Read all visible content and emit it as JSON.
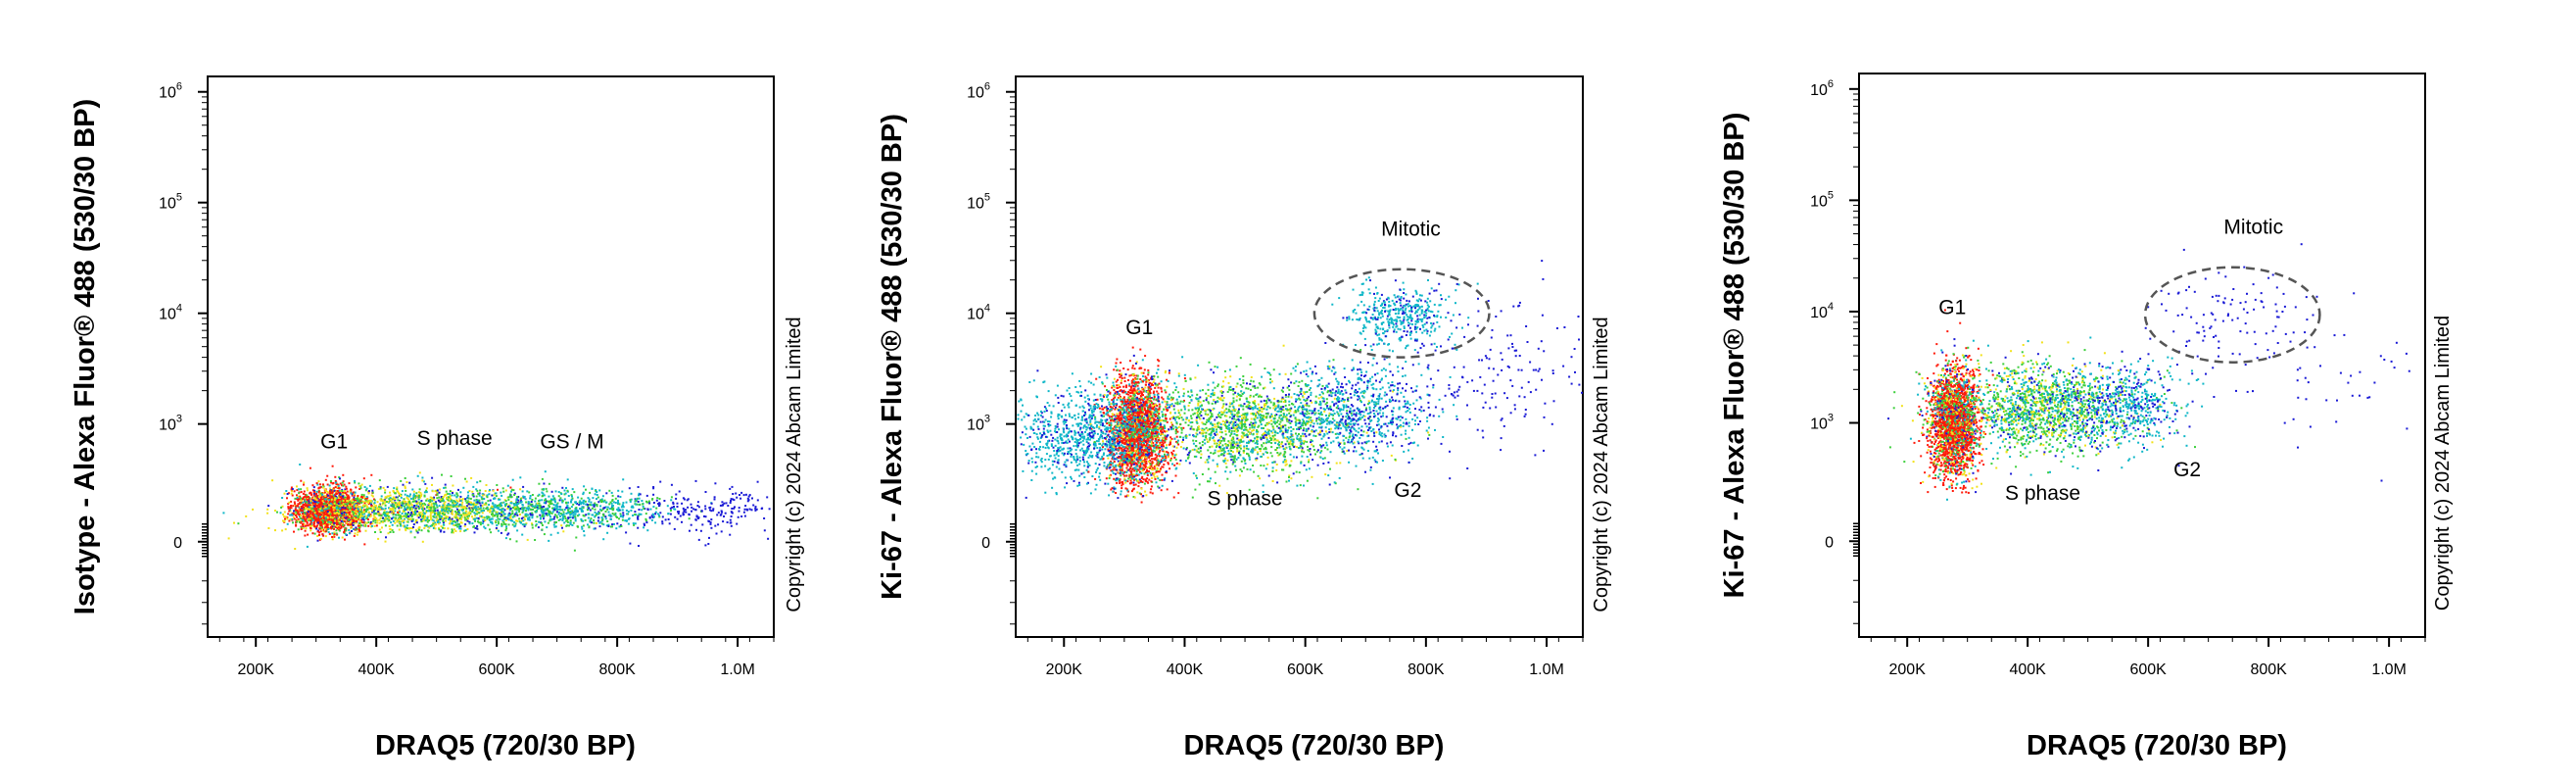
{
  "copyright_text": "Copyright (c) 2024 Abcam Limited",
  "colors": {
    "low": "#1a1ad6",
    "mid_low": "#0fb7c8",
    "mid": "#3ccf3c",
    "mid_high": "#f2e21a",
    "high": "#ff1a0a",
    "frame": "#000000",
    "gate": "#555555"
  },
  "chart_data": [
    {
      "type": "scatter",
      "title": "",
      "xlabel": "DRAQ5 (720/30 BP)",
      "ylabel": "Isotype - Alexa Fluor® 488 (530/30 BP)",
      "xlim": [
        120000,
        1060000
      ],
      "x_ticks": [
        {
          "value": 200000,
          "label": "200K"
        },
        {
          "value": 400000,
          "label": "400K"
        },
        {
          "value": 600000,
          "label": "600K"
        },
        {
          "value": 800000,
          "label": "800K"
        },
        {
          "value": 1000000,
          "label": "1.0M"
        }
      ],
      "y_scale": "biexponential",
      "y_ticks": [
        {
          "value": 0,
          "base": "0",
          "exp": ""
        },
        {
          "value": 1000,
          "base": "10",
          "exp": "3"
        },
        {
          "value": 10000,
          "base": "10",
          "exp": "4"
        },
        {
          "value": 100000,
          "base": "10",
          "exp": "5"
        },
        {
          "value": 1000000,
          "base": "10",
          "exp": "6"
        }
      ],
      "annotations": [
        {
          "text": "G1",
          "x": 330000,
          "y": 600
        },
        {
          "text": "S phase",
          "x": 530000,
          "y": 650
        },
        {
          "text": "GS / M",
          "x": 725000,
          "y": 600
        }
      ],
      "gates": [],
      "populations": [
        {
          "name": "G1",
          "x_center": 320000,
          "y_center": 15,
          "density": "high"
        },
        {
          "name": "S phase",
          "x_center": 500000,
          "y_center": 15,
          "density": "medium"
        },
        {
          "name": "GS / M",
          "x_center": 700000,
          "y_center": 15,
          "density": "low"
        }
      ]
    },
    {
      "type": "scatter",
      "title": "",
      "xlabel": "DRAQ5 (720/30 BP)",
      "ylabel": "Ki-67 - Alexa Fluor® 488 (530/30 BP)",
      "xlim": [
        120000,
        1060000
      ],
      "x_ticks": [
        {
          "value": 200000,
          "label": "200K"
        },
        {
          "value": 400000,
          "label": "400K"
        },
        {
          "value": 600000,
          "label": "600K"
        },
        {
          "value": 800000,
          "label": "800K"
        },
        {
          "value": 1000000,
          "label": "1.0M"
        }
      ],
      "y_scale": "biexponential",
      "y_ticks": [
        {
          "value": 0,
          "base": "0",
          "exp": ""
        },
        {
          "value": 1000,
          "base": "10",
          "exp": "3"
        },
        {
          "value": 10000,
          "base": "10",
          "exp": "4"
        },
        {
          "value": 100000,
          "base": "10",
          "exp": "5"
        },
        {
          "value": 1000000,
          "base": "10",
          "exp": "6"
        }
      ],
      "annotations": [
        {
          "text": "Mitotic",
          "x": 775000,
          "y": 50000
        },
        {
          "text": "G1",
          "x": 325000,
          "y": 6500
        },
        {
          "text": "G2",
          "x": 770000,
          "y": 220
        },
        {
          "text": "S phase",
          "x": 500000,
          "y": 20
        }
      ],
      "gates": [
        {
          "name": "Mitotic",
          "x_center": 760000,
          "y_center": 10000,
          "x_radius": 145000,
          "y_range": [
            4000,
            25000
          ]
        }
      ],
      "populations": [
        {
          "name": "G1",
          "x_center": 315000,
          "y_center": 900,
          "density": "high"
        },
        {
          "name": "S phase",
          "x_center": 520000,
          "y_center": 1000,
          "density": "medium"
        },
        {
          "name": "G2",
          "x_center": 720000,
          "y_center": 1300,
          "density": "low"
        },
        {
          "name": "Mitotic",
          "x_center": 760000,
          "y_center": 10000,
          "density": "low"
        }
      ]
    },
    {
      "type": "scatter",
      "title": "",
      "xlabel": "DRAQ5 (720/30 BP)",
      "ylabel": "Ki-67 - Alexa Fluor® 488 (530/30 BP)",
      "xlim": [
        120000,
        1060000
      ],
      "x_ticks": [
        {
          "value": 200000,
          "label": "200K"
        },
        {
          "value": 400000,
          "label": "400K"
        },
        {
          "value": 600000,
          "label": "600K"
        },
        {
          "value": 800000,
          "label": "800K"
        },
        {
          "value": 1000000,
          "label": "1.0M"
        }
      ],
      "y_scale": "biexponential",
      "y_ticks": [
        {
          "value": 0,
          "base": "0",
          "exp": ""
        },
        {
          "value": 1000,
          "base": "10",
          "exp": "3"
        },
        {
          "value": 10000,
          "base": "10",
          "exp": "4"
        },
        {
          "value": 100000,
          "base": "10",
          "exp": "5"
        },
        {
          "value": 1000000,
          "base": "10",
          "exp": "6"
        }
      ],
      "annotations": [
        {
          "text": "Mitotic",
          "x": 775000,
          "y": 50000
        },
        {
          "text": "G1",
          "x": 275000,
          "y": 9500
        },
        {
          "text": "G2",
          "x": 665000,
          "y": 330
        },
        {
          "text": "S phase",
          "x": 425000,
          "y": 30
        }
      ],
      "gates": [
        {
          "name": "Mitotic",
          "x_center": 740000,
          "y_center": 10000,
          "x_radius": 145000,
          "y_range": [
            3500,
            25000
          ]
        }
      ],
      "populations": [
        {
          "name": "G1",
          "x_center": 270000,
          "y_center": 1000,
          "density": "high"
        },
        {
          "name": "S phase",
          "x_center": 430000,
          "y_center": 1400,
          "density": "medium"
        },
        {
          "name": "G2",
          "x_center": 560000,
          "y_center": 1500,
          "density": "low"
        },
        {
          "name": "Mitotic",
          "x_center": 740000,
          "y_center": 10000,
          "density": "very-low"
        }
      ]
    }
  ]
}
